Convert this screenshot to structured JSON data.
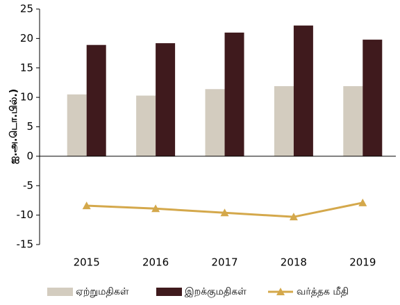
{
  "chart_data": {
    "type": "bar_line",
    "ylabel": "ஐ.அ.டொ.பில்.)",
    "categories": [
      "2015",
      "2016",
      "2017",
      "2018",
      "2019"
    ],
    "series": [
      {
        "name": "ஏற்றுமதிகள்",
        "type": "bar",
        "color": "#d3ccbf",
        "values": [
          10.5,
          10.3,
          11.4,
          11.9,
          11.9
        ]
      },
      {
        "name": "இறக்குமதிகள்",
        "type": "bar",
        "color": "#3f1a1d",
        "values": [
          18.9,
          19.2,
          21.0,
          22.2,
          19.8
        ]
      },
      {
        "name": "வர்த்தக  மீதி",
        "type": "line",
        "color": "#d4a84b",
        "values": [
          -8.4,
          -8.9,
          -9.6,
          -10.3,
          -7.9
        ]
      }
    ],
    "ylim": [
      -15,
      25
    ],
    "yticks": [
      -15,
      -10,
      -5,
      0,
      5,
      10,
      15,
      20,
      25
    ],
    "legend": "bottom"
  }
}
